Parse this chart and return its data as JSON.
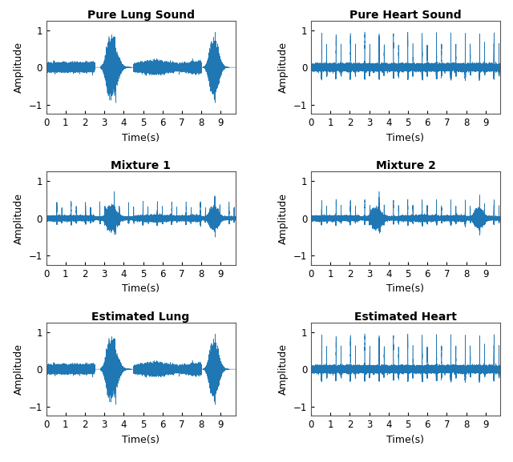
{
  "titles": [
    "Pure Lung Sound",
    "Pure Heart Sound",
    "Mixture 1",
    "Mixture 2",
    "Estimated Lung",
    "Estimated Heart"
  ],
  "xlabel": "Time(s)",
  "ylabel": "Amplitude",
  "xlim": [
    0,
    9.75
  ],
  "ylim": [
    -1.25,
    1.25
  ],
  "yticks": [
    -1,
    0,
    1
  ],
  "xticks": [
    0,
    1,
    2,
    3,
    4,
    5,
    6,
    7,
    8,
    9
  ],
  "line_color": "#1f77b4",
  "background_color": "#ffffff",
  "fs": 8000,
  "duration": 9.75,
  "title_fontsize": 10,
  "label_fontsize": 9,
  "tick_fontsize": 8.5,
  "lw": 0.4
}
